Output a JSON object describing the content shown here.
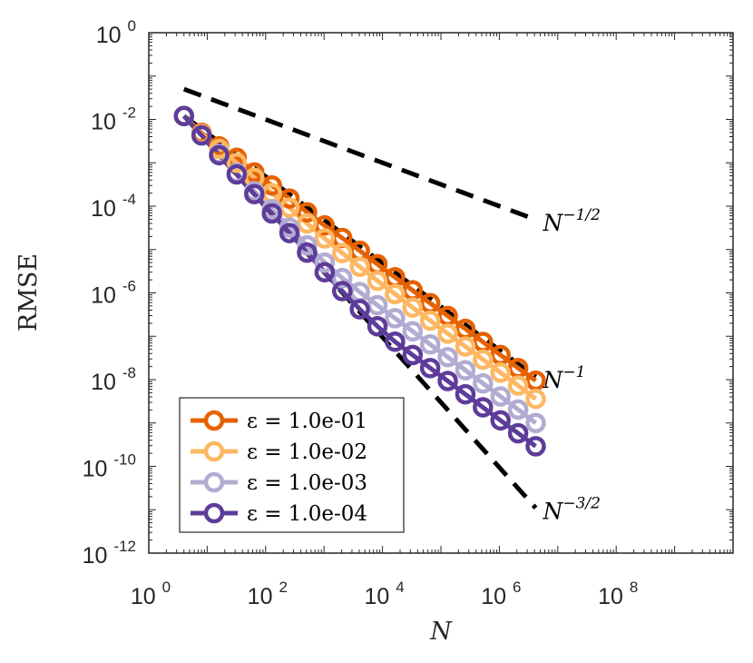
{
  "chart_data": {
    "type": "line",
    "xscale": "log",
    "yscale": "log",
    "xlabel": "N",
    "ylabel": "RMSE",
    "xlim": [
      1,
      10000000000.0
    ],
    "ylim": [
      1e-12,
      1
    ],
    "x_ticks": [
      {
        "base": "10",
        "exp": "0"
      },
      {
        "base": "10",
        "exp": "2"
      },
      {
        "base": "10",
        "exp": "4"
      },
      {
        "base": "10",
        "exp": "6"
      },
      {
        "base": "10",
        "exp": "8"
      }
    ],
    "y_ticks": [
      {
        "base": "10",
        "exp": "0"
      },
      {
        "base": "10",
        "exp": "-2"
      },
      {
        "base": "10",
        "exp": "-4"
      },
      {
        "base": "10",
        "exp": "-6"
      },
      {
        "base": "10",
        "exp": "-8"
      },
      {
        "base": "10",
        "exp": "-10"
      },
      {
        "base": "10",
        "exp": "-12"
      }
    ],
    "legend_position": "bottom-left",
    "series": [
      {
        "name": "ε = 1.0e-01",
        "color": "#E66100",
        "x": [
          4,
          8,
          16,
          32,
          64,
          128,
          256,
          512,
          1024,
          2048,
          4096,
          8192,
          16384,
          32768,
          65536,
          131072,
          262144,
          524288,
          1048576,
          2097152,
          4194304
        ],
        "y": [
          0.012,
          0.0049,
          0.0024,
          0.0013,
          0.0006,
          0.0003,
          0.00015,
          7.2e-05,
          3.6e-05,
          1.85e-05,
          9.4e-06,
          4.6e-06,
          2.3e-06,
          1.15e-06,
          5.8e-07,
          2.95e-07,
          1.48e-07,
          7.4e-08,
          3.7e-08,
          1.85e-08,
          9.5e-09
        ]
      },
      {
        "name": "ε = 1.0e-02",
        "color": "#FDB863",
        "x": [
          4,
          8,
          16,
          32,
          64,
          128,
          256,
          512,
          1024,
          2048,
          4096,
          8192,
          16384,
          32768,
          65536,
          131072,
          262144,
          524288,
          1048576,
          2097152,
          4194304
        ],
        "y": [
          0.012,
          0.0046,
          0.0021,
          0.001,
          0.00045,
          0.0002,
          9.2e-05,
          4e-05,
          1.8e-05,
          8.3e-06,
          4e-06,
          1.9e-06,
          9.4e-07,
          4.6e-07,
          2.3e-07,
          1.15e-07,
          5.8e-08,
          2.9e-08,
          1.45e-08,
          7.3e-09,
          3.6e-09
        ]
      },
      {
        "name": "ε = 1.0e-03",
        "color": "#B2ABD2",
        "x": [
          4,
          8,
          16,
          32,
          64,
          128,
          256,
          512,
          1024,
          2048,
          4096,
          8192,
          16384,
          32768,
          65536,
          131072,
          262144,
          524288,
          1048576,
          2097152,
          4194304
        ],
        "y": [
          0.012,
          0.0043,
          0.0016,
          0.00059,
          0.00022,
          8.5e-05,
          3.2e-05,
          1.25e-05,
          5e-06,
          2.2e-06,
          1.05e-06,
          5.2e-07,
          2.6e-07,
          1.3e-07,
          6.5e-08,
          3.3e-08,
          1.65e-08,
          8.2e-09,
          4.1e-09,
          2.05e-09,
          1e-09
        ]
      },
      {
        "name": "ε = 1.0e-04",
        "color": "#5E3C99",
        "x": [
          4,
          8,
          16,
          32,
          64,
          128,
          256,
          512,
          1024,
          2048,
          4096,
          8192,
          16384,
          32768,
          65536,
          131072,
          262144,
          524288,
          1048576,
          2097152,
          4194304
        ],
        "y": [
          0.012,
          0.0043,
          0.0015,
          0.00054,
          0.00019,
          6.8e-05,
          2.4e-05,
          8.5e-06,
          3e-06,
          1.1e-06,
          4.2e-07,
          1.7e-07,
          7.5e-08,
          3.7e-08,
          1.85e-08,
          9.3e-09,
          4.6e-09,
          2.3e-09,
          1.15e-09,
          5.8e-10,
          2.9e-10
        ]
      }
    ],
    "reference_lines": [
      {
        "label_base": "N",
        "label_exp": "−1/2",
        "x": [
          4,
          4194304
        ],
        "y": [
          0.05,
          4.9e-05
        ],
        "color": "#000000",
        "dash": true
      },
      {
        "label_base": "N",
        "label_exp": "−1",
        "x": [
          4,
          4194304
        ],
        "y": [
          0.012,
          1.15e-08
        ],
        "color": "#000000",
        "dash": true
      },
      {
        "label_base": "N",
        "label_exp": "−3/2",
        "x": [
          4,
          4194304
        ],
        "y": [
          0.012,
          1.1e-11
        ],
        "color": "#000000",
        "dash": true
      }
    ]
  }
}
